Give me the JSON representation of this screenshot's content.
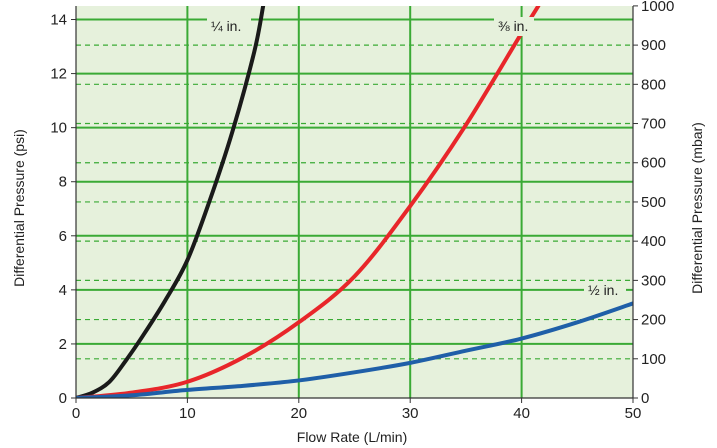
{
  "chart_data": {
    "type": "line",
    "xlabel": "Flow Rate (L/min)",
    "ylabel": "Differential Pressure (psi)",
    "y2label": "Differential Pressure (mbar)",
    "xlim": [
      0,
      50
    ],
    "ylim": [
      0,
      14.5
    ],
    "y2lim": [
      0,
      1000
    ],
    "x_ticks": [
      0,
      10,
      20,
      30,
      40,
      50
    ],
    "y_ticks": [
      0,
      2,
      4,
      6,
      8,
      10,
      12,
      14
    ],
    "y2_ticks": [
      0,
      100,
      200,
      300,
      400,
      500,
      600,
      700,
      800,
      900,
      1000
    ],
    "grid": true,
    "background_color": "#e6f1dc",
    "grid_color": "#3aaa35",
    "series": [
      {
        "name": "¼ in.",
        "color": "#1a1a1a",
        "x": [
          0,
          1.5,
          3,
          4.5,
          6,
          8,
          10,
          12,
          14,
          16,
          16.8
        ],
        "y": [
          0,
          0.2,
          0.6,
          1.4,
          2.3,
          3.6,
          5.1,
          7.3,
          9.8,
          12.8,
          14.5
        ]
      },
      {
        "name": "⅜ in.",
        "color": "#e8262a",
        "x": [
          0,
          5,
          10,
          15,
          20,
          25,
          30,
          35,
          40,
          41.5
        ],
        "y": [
          0,
          0.2,
          0.6,
          1.5,
          2.8,
          4.5,
          7.1,
          10.1,
          13.5,
          14.5
        ]
      },
      {
        "name": "½ in.",
        "color": "#1f5fa8",
        "x": [
          0,
          5,
          10,
          15,
          20,
          25,
          30,
          35,
          40,
          45,
          50
        ],
        "y": [
          0,
          0.1,
          0.3,
          0.45,
          0.65,
          0.95,
          1.3,
          1.75,
          2.2,
          2.8,
          3.5
        ]
      }
    ]
  }
}
